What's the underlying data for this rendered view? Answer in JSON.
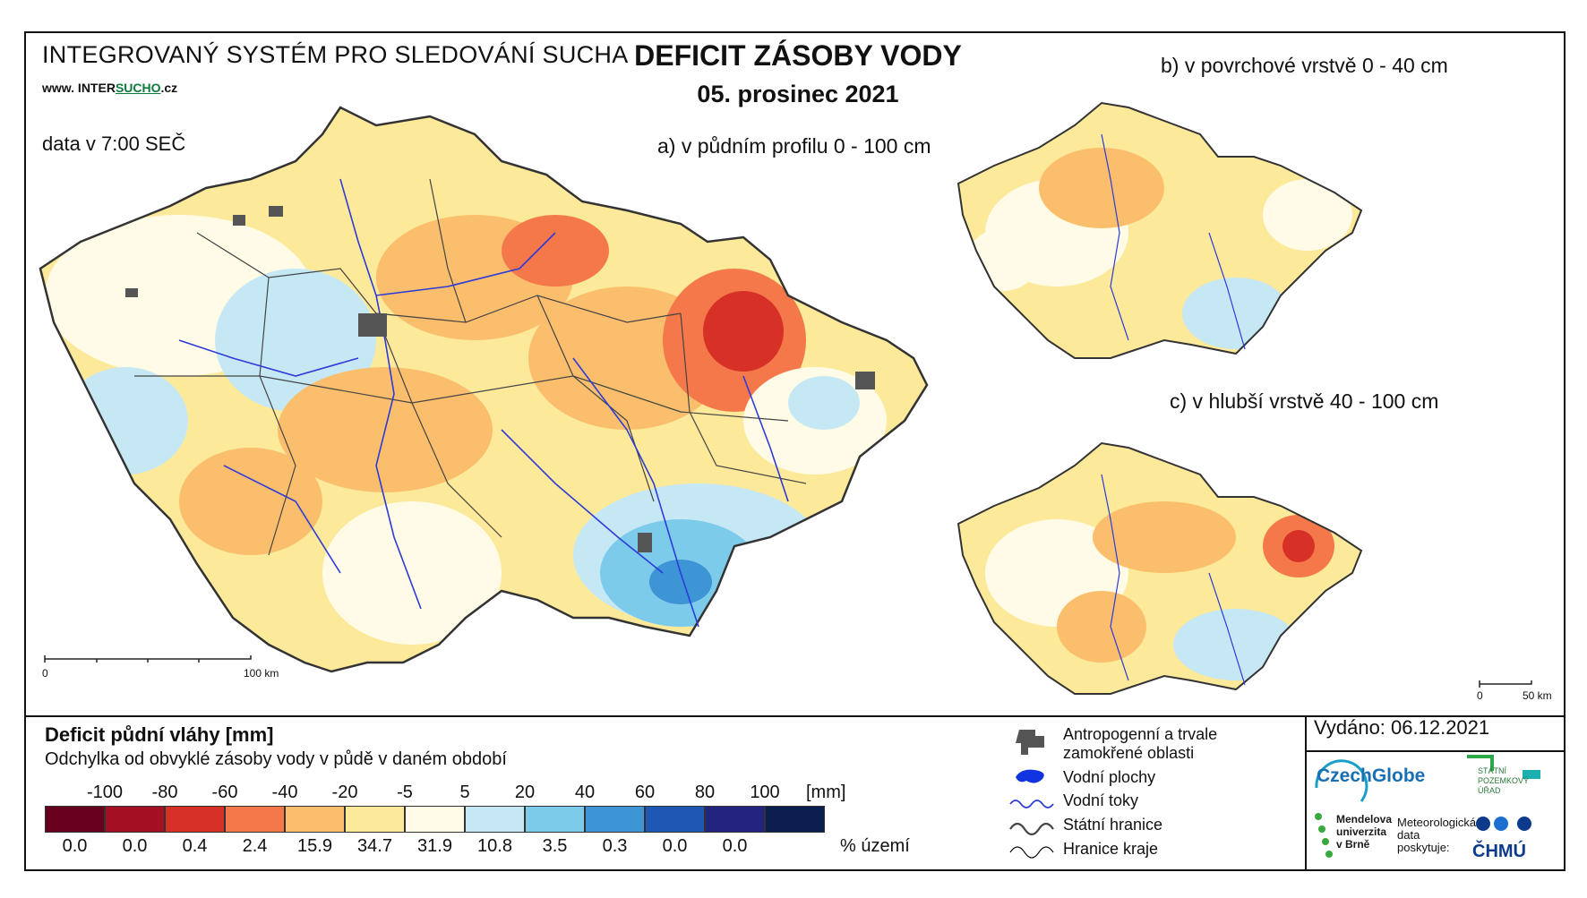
{
  "header": {
    "system_title": "INTEGROVANÝ SYSTÉM PRO SLEDOVÁNÍ SUCHA",
    "website_prefix": "www. INTER",
    "website_highlight": "SUCHO",
    "website_suffix": ".cz",
    "data_time": "data v 7:00 SEČ",
    "map_title": "DEFICIT ZÁSOBY VODY",
    "map_date": "05. prosinec 2021"
  },
  "panels": {
    "a": "a) v půdním profilu 0 - 100 cm",
    "b": "b) v povrchové vrstvě 0 - 40 cm",
    "c": "c) v hlubší vrstvě 40 - 100 cm"
  },
  "scale_bars": {
    "main": {
      "start": "0",
      "end": "100 km"
    },
    "small": {
      "start": "0",
      "end": "50 km"
    }
  },
  "legend": {
    "title": "Deficit půdní vláhy  [mm]",
    "subtitle": "Odchylka od obvyklé zásoby vody v půdě v daném období",
    "ticks": [
      "-100",
      "-80",
      "-60",
      "-40",
      "-20",
      "-5",
      "5",
      "20",
      "40",
      "60",
      "80",
      "100"
    ],
    "unit": "[mm]",
    "classes": [
      {
        "color": "#67001f",
        "percent": "0.0"
      },
      {
        "color": "#a50f24",
        "percent": "0.0"
      },
      {
        "color": "#d73027",
        "percent": "0.4"
      },
      {
        "color": "#f4784a",
        "percent": "2.4"
      },
      {
        "color": "#fbbe6c",
        "percent": "15.9"
      },
      {
        "color": "#fde99a",
        "percent": "34.7"
      },
      {
        "color": "#fffbe6",
        "percent": "31.9"
      },
      {
        "color": "#c6e8f5",
        "percent": "10.8"
      },
      {
        "color": "#7ccbea",
        "percent": "3.5"
      },
      {
        "color": "#3e95d6",
        "percent": "0.3"
      },
      {
        "color": "#1f58b4",
        "percent": "0.0"
      },
      {
        "color": "#23247f",
        "percent": "0.0"
      },
      {
        "color": "#0b1e50",
        "percent": ""
      }
    ],
    "percent_unit": "% území"
  },
  "symbols": {
    "anthropogenic_1": "Antropogenní a trvale",
    "anthropogenic_2": "zamokřené oblasti",
    "water_bodies": "Vodní plochy",
    "streams": "Vodní toky",
    "state_border": "Státní hranice",
    "region_border": "Hranice kraje"
  },
  "footer": {
    "issued": "Vydáno: 06.12.2021",
    "czechglobe": "CzechGlobe",
    "spu_1": "STÁTNÍ",
    "spu_2": "POZEMKOVÝ",
    "spu_3": "ÚŘAD",
    "mendelu_1": "Mendelova",
    "mendelu_2": "univerzita",
    "mendelu_3": "v Brně",
    "met_1": "Meteorologická",
    "met_2": "data",
    "met_3": "poskytuje:",
    "chmu": "ČHMÚ"
  }
}
